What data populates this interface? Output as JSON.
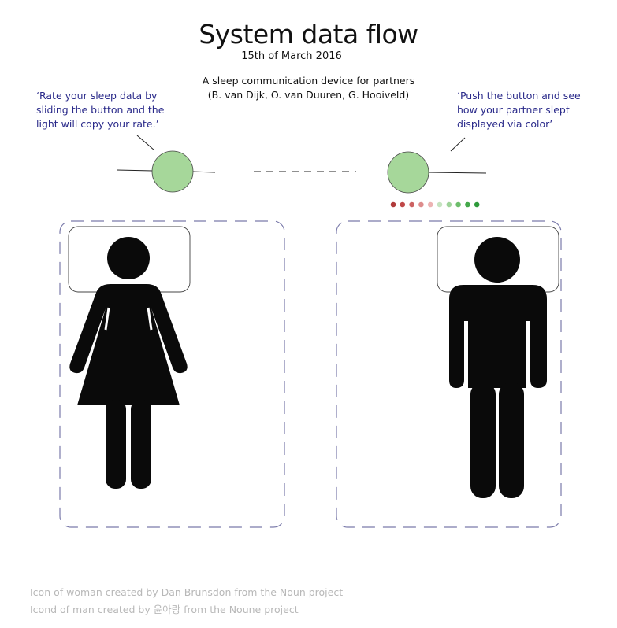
{
  "header": {
    "title": "System data flow",
    "date": "15th of March 2016",
    "subtitle_line1": "A sleep communication device for partners",
    "subtitle_line2": "(B. van Dijk, O. van Duuren, G. Hooiveld)"
  },
  "left_quote": {
    "line1": "‘Rate your sleep data by",
    "line2": "sliding the button and the",
    "line3": "light will copy your rate.’"
  },
  "right_quote": {
    "line1": "‘Push the button and see",
    "line2": "how your partner slept",
    "line3": "displayed via color’"
  },
  "device_color": "#a6d79a",
  "quote_color": "#2a2a8a",
  "bed_border_color": "#7a7aaa",
  "rating_dots": [
    "#b03a3a",
    "#c04848",
    "#cc6262",
    "#dd8c8c",
    "#ecb3b3",
    "#c4e3bf",
    "#9fd39a",
    "#6dbd6b",
    "#44a84a",
    "#2e9a3a"
  ],
  "icons": {
    "woman": "woman-icon",
    "man": "man-icon"
  },
  "credits": {
    "line1": "Icon of woman created by Dan Brunsdon from the Noun project",
    "line2": "Icond of man created by 윤아랑 from the Noune project"
  }
}
